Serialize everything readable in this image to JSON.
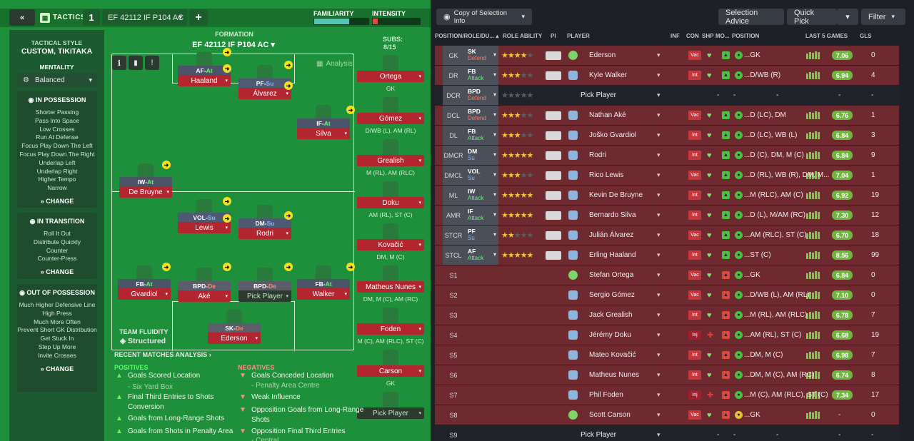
{
  "header": {
    "tactics_label": "TACTICS",
    "tactic_number": "1",
    "tactic_name": "EF 42112 IF P104 AC",
    "add_label": "+",
    "familiarity_label": "FAMILIARITY",
    "intensity_label": "INTENSITY",
    "familiarity_level": 0.65,
    "intensity_level": 0.1
  },
  "side": {
    "tactical_style_label": "TACTICAL STYLE",
    "tactical_style_value": "CUSTOM, TIKITAKA",
    "mentality_label": "MENTALITY",
    "mentality_value": "Balanced",
    "in_possession_title": "IN POSSESSION",
    "in_possession_items": [
      "Shorter Passing",
      "Pass Into Space",
      "Low Crosses",
      "Run At Defense",
      "Focus Play Down The Left",
      "Focus Play Down The Right",
      "Underlap Left",
      "Underlap Right",
      "Higher Tempo",
      "Narrow"
    ],
    "in_transition_title": "IN TRANSITION",
    "in_transition_items": [
      "Roll It Out",
      "Distribute Quickly",
      "Counter",
      "Counter-Press"
    ],
    "out_possession_title": "OUT OF POSSESSION",
    "out_possession_items": [
      "Much Higher Defensive Line",
      "High Press",
      "Much More Often",
      "Prevent Short GK Distribution",
      "Get Stuck In",
      "Step Up More",
      "Invite Crosses"
    ],
    "change_label": "CHANGE"
  },
  "formation": {
    "label": "FORMATION",
    "name": "EF 42112 IF P104 AC",
    "analysis_label": "Analysis",
    "subs_label": "SUBS:",
    "subs_count": "8/15",
    "fluidity_label": "TEAM FLUIDITY",
    "fluidity_value": "Structured"
  },
  "pitch_players": [
    {
      "role": "AF",
      "duty": "At",
      "name": "Haaland"
    },
    {
      "role": "PF",
      "duty": "Su",
      "name": "Álvarez"
    },
    {
      "role": "IF",
      "duty": "At",
      "name": "Silva"
    },
    {
      "role": "IW",
      "duty": "At",
      "name": "De Bruyne"
    },
    {
      "role": "VOL",
      "duty": "Su",
      "name": "Lewis"
    },
    {
      "role": "DM",
      "duty": "Su",
      "name": "Rodri"
    },
    {
      "role": "FB",
      "duty": "At",
      "name": "Gvardiol"
    },
    {
      "role": "BPD",
      "duty": "De",
      "name": "Aké"
    },
    {
      "role": "BPD",
      "duty": "De",
      "name": "Pick Player"
    },
    {
      "role": "FB",
      "duty": "At",
      "name": "Walker"
    },
    {
      "role": "SK",
      "duty": "De",
      "name": "Ederson"
    }
  ],
  "subs": [
    {
      "name": "Ortega",
      "pos": "GK"
    },
    {
      "name": "Gómez",
      "pos": "D/WB (L), AM (RL)"
    },
    {
      "name": "Grealish",
      "pos": "M (RL), AM (RLC)"
    },
    {
      "name": "Doku",
      "pos": "AM (RL), ST (C)"
    },
    {
      "name": "Kovačić",
      "pos": "DM, M (C)"
    },
    {
      "name": "Matheus Nunes",
      "pos": "DM, M (C), AM (RC)"
    },
    {
      "name": "Foden",
      "pos": "M (C), AM (RLC), ST (C)"
    },
    {
      "name": "Carson",
      "pos": "GK"
    },
    {
      "name": "Pick Player",
      "pos": ""
    }
  ],
  "analysis": {
    "title": "RECENT MATCHES ANALYSIS",
    "positives_label": "POSITIVES",
    "negatives_label": "NEGATIVES",
    "positives": [
      "Goals Scored Location",
      "- Six Yard Box",
      "Final Third Entries to Shots",
      "Conversion",
      "Goals from Long-Range Shots",
      "Goals from Shots in Penalty Area"
    ],
    "negatives": [
      "Goals Conceded Location",
      "- Penalty Area Centre",
      "Weak Influence",
      "Opposition Goals from Long-Range",
      "Shots",
      "Opposition Final Third Entries",
      "- Central"
    ]
  },
  "toolbar": {
    "copy_label": "Copy of Selection Info",
    "selection_advice": "Selection Advice",
    "quick_pick": "Quick Pick",
    "filter": "Filter"
  },
  "columns": {
    "position_role": "POSITION/ROLE/DU...",
    "role_ability": "ROLE ABILITY",
    "pi": "PI",
    "player": "PLAYER",
    "inf": "INF",
    "con": "CON",
    "shp": "SHP",
    "mo": "MO...",
    "position": "POSITION",
    "last5": "LAST 5 GAMES",
    "gls": "GLS"
  },
  "colors": {
    "pitch": "#1e8f3a",
    "selection_red": "#6e2a2f",
    "rating_green": "#6fb83f"
  },
  "rows": [
    {
      "pos": "GK",
      "role": "SK",
      "duty": "Defend",
      "stars": 3.5,
      "player": "Ederson",
      "inf": "Vac",
      "ppos": "GK",
      "rating": "7.06",
      "gls": "0",
      "gk": true,
      "selected": true
    },
    {
      "pos": "DR",
      "role": "FB",
      "duty": "Attack",
      "stars": 3,
      "player": "Kyle Walker",
      "inf": "Int",
      "ppos": "D/WB (R)",
      "rating": "6.94",
      "gls": "4",
      "selected": true
    },
    {
      "pos": "DCR",
      "role": "BPD",
      "duty": "Defend",
      "stars": 0,
      "player": "Pick Player",
      "inf": "",
      "ppos": "-",
      "rating": "-",
      "gls": "-",
      "selected": false,
      "empty": true
    },
    {
      "pos": "DCL",
      "role": "BPD",
      "duty": "Defend",
      "stars": 3,
      "player": "Nathan Aké",
      "inf": "Vac",
      "ppos": "D (LC), DM",
      "rating": "6.76",
      "gls": "1",
      "selected": true
    },
    {
      "pos": "DL",
      "role": "FB",
      "duty": "Attack",
      "stars": 3,
      "player": "Joško Gvardiol",
      "inf": "Int",
      "ppos": "D (LC), WB (L)",
      "rating": "6.84",
      "gls": "3",
      "selected": true
    },
    {
      "pos": "DMCR",
      "role": "DM",
      "duty": "Su",
      "stars": 4.5,
      "player": "Rodri",
      "inf": "Int",
      "ppos": "D (C), DM, M (C)",
      "rating": "6.84",
      "gls": "9",
      "selected": true
    },
    {
      "pos": "DMCL",
      "role": "VOL",
      "duty": "Su",
      "stars": 3,
      "player": "Rico Lewis",
      "inf": "Vac",
      "ppos": "D (RL), WB (R), DM, M...",
      "rating": "7.04",
      "gls": "1",
      "selected": true
    },
    {
      "pos": "ML",
      "role": "IW",
      "duty": "Attack",
      "stars": 4.5,
      "player": "Kevin De Bruyne",
      "inf": "Int",
      "ppos": "M (RLC), AM (C)",
      "rating": "6.92",
      "gls": "19",
      "selected": true
    },
    {
      "pos": "AMR",
      "role": "IF",
      "duty": "Attack",
      "stars": 4.5,
      "player": "Bernardo Silva",
      "inf": "Int",
      "ppos": "D (L), M/AM (RC)",
      "rating": "7.30",
      "gls": "12",
      "selected": true
    },
    {
      "pos": "STCR",
      "role": "PF",
      "duty": "Su",
      "stars": 2,
      "player": "Julián Álvarez",
      "inf": "Vac",
      "ppos": "AM (RLC), ST (C)",
      "rating": "6.70",
      "gls": "18",
      "selected": true
    },
    {
      "pos": "STCL",
      "role": "AF",
      "duty": "Attack",
      "stars": 5,
      "player": "Erling Haaland",
      "inf": "Int",
      "ppos": "ST (C)",
      "rating": "8.56",
      "gls": "99",
      "selected": true
    },
    {
      "pos": "S1",
      "player": "Stefan Ortega",
      "inf": "Vac",
      "ppos": "GK",
      "rating": "6.84",
      "gls": "0",
      "gk": true,
      "selected": true,
      "sub": true
    },
    {
      "pos": "S2",
      "player": "Sergio Gómez",
      "inf": "Vac",
      "ppos": "D/WB (L), AM (RL)",
      "rating": "7.10",
      "gls": "0",
      "selected": true,
      "sub": true
    },
    {
      "pos": "S3",
      "player": "Jack Grealish",
      "inf": "Int",
      "ppos": "M (RL), AM (RLC)",
      "rating": "6.78",
      "gls": "7",
      "selected": true,
      "sub": true
    },
    {
      "pos": "S4",
      "player": "Jérémy Doku",
      "inf": "Inj",
      "ppos": "AM (RL), ST (C)",
      "rating": "6.68",
      "gls": "19",
      "selected": true,
      "sub": true
    },
    {
      "pos": "S5",
      "player": "Mateo Kovačić",
      "inf": "Int",
      "ppos": "DM, M (C)",
      "rating": "6.98",
      "gls": "7",
      "selected": true,
      "sub": true
    },
    {
      "pos": "S6",
      "player": "Matheus Nunes",
      "inf": "Int",
      "ppos": "DM, M (C), AM (RC)",
      "rating": "6.74",
      "gls": "8",
      "selected": true,
      "sub": true
    },
    {
      "pos": "S7",
      "player": "Phil Foden",
      "inf": "Inj",
      "ppos": "M (C), AM (RLC), ST (C)",
      "rating": "7.34",
      "gls": "17",
      "selected": true,
      "sub": true
    },
    {
      "pos": "S8",
      "player": "Scott Carson",
      "inf": "Vac",
      "ppos": "GK",
      "rating": "-",
      "gls": "0",
      "gk": true,
      "selected": true,
      "sub": true
    },
    {
      "pos": "S9",
      "player": "Pick Player",
      "inf": "",
      "ppos": "-",
      "rating": "-",
      "gls": "-",
      "selected": false,
      "sub": true,
      "empty": true
    }
  ]
}
